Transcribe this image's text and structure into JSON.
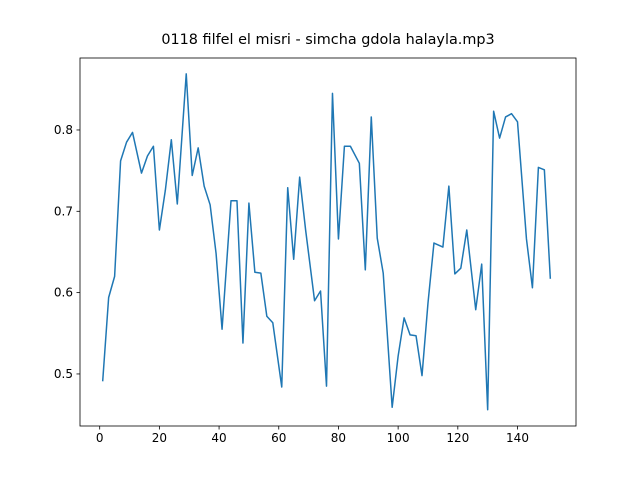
{
  "chart_data": {
    "type": "line",
    "title": "0118 filfel el misri - simcha gdola halayla.mp3",
    "x": [
      1,
      3,
      5,
      7,
      9,
      11,
      14,
      16,
      18,
      20,
      22,
      24,
      26,
      29,
      31,
      33,
      35,
      37,
      39,
      41,
      44,
      46,
      48,
      50,
      52,
      54,
      56,
      58,
      61,
      63,
      65,
      67,
      69,
      72,
      74,
      76,
      78,
      80,
      82,
      84,
      87,
      89,
      91,
      93,
      95,
      98,
      100,
      102,
      104,
      106,
      108,
      110,
      112,
      115,
      117,
      119,
      121,
      123,
      126,
      128,
      130,
      132,
      134,
      136,
      138,
      140,
      143,
      145,
      147,
      149,
      151
    ],
    "series": [
      {
        "color": "#1f77b4",
        "values": [
          0.491,
          0.594,
          0.62,
          0.762,
          0.785,
          0.797,
          0.747,
          0.768,
          0.78,
          0.677,
          0.726,
          0.788,
          0.709,
          0.869,
          0.744,
          0.778,
          0.731,
          0.708,
          0.648,
          0.555,
          0.713,
          0.713,
          0.538,
          0.71,
          0.625,
          0.624,
          0.571,
          0.563,
          0.484,
          0.729,
          0.641,
          0.742,
          0.677,
          0.59,
          0.602,
          0.485,
          0.845,
          0.666,
          0.78,
          0.78,
          0.759,
          0.628,
          0.816,
          0.667,
          0.624,
          0.459,
          0.522,
          0.569,
          0.548,
          0.547,
          0.498,
          0.587,
          0.661,
          0.656,
          0.731,
          0.623,
          0.63,
          0.677,
          0.579,
          0.635,
          0.456,
          0.823,
          0.79,
          0.816,
          0.82,
          0.81,
          0.666,
          0.606,
          0.754,
          0.751,
          0.617
        ]
      }
    ],
    "xlim": [
      -6.6,
      159.6
    ],
    "ylim": [
      0.436,
      0.8885
    ],
    "xticks": [
      0,
      20,
      40,
      60,
      80,
      100,
      120,
      140
    ],
    "yticks": [
      0.5,
      0.6,
      0.7,
      0.8
    ]
  }
}
